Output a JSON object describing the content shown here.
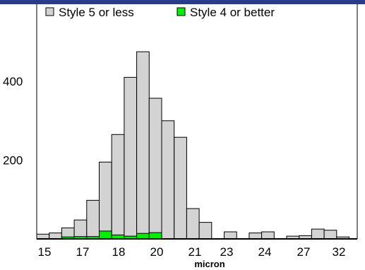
{
  "chart_data": {
    "type": "bar",
    "title": "",
    "xlabel": "micron",
    "ylabel": "",
    "x_tick_labels": [
      "15",
      "17",
      "18",
      "20",
      "21",
      "23",
      "24",
      "27",
      "32"
    ],
    "y_tick_labels": [
      "200",
      "400"
    ],
    "ylim": [
      0,
      520
    ],
    "grid": false,
    "legend_placement": "top",
    "series": [
      {
        "name": "Style 5 or less",
        "color": "#d3d3d3",
        "values": [
          12,
          15,
          28,
          48,
          98,
          195,
          265,
          410,
          475,
          357,
          300,
          258,
          77,
          42,
          0,
          18,
          0,
          15,
          18,
          0,
          7,
          8,
          25,
          22,
          5
        ]
      },
      {
        "name": "Style 4 or better",
        "color": "#00ee00",
        "values": [
          0,
          0,
          5,
          6,
          6,
          20,
          10,
          7,
          14,
          16,
          0,
          0,
          0,
          0,
          0,
          0,
          0,
          0,
          0,
          0,
          0,
          0,
          0,
          0,
          0
        ]
      }
    ]
  }
}
